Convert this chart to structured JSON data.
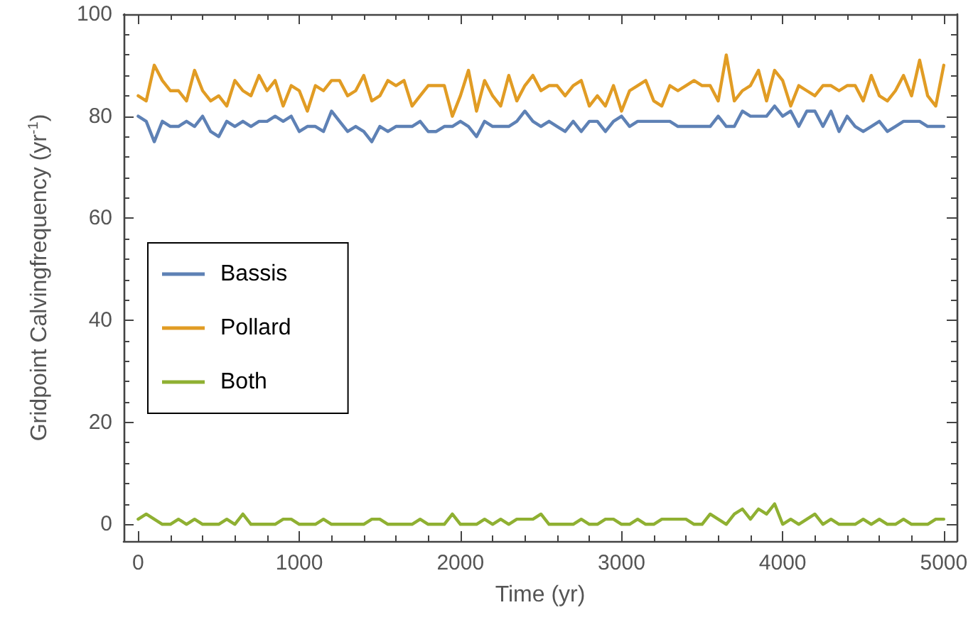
{
  "chart_data": {
    "type": "line",
    "xlabel": "Time (yr)",
    "ylabel": "Gridpoint Calvingfrequency (yr$^{-1}$)",
    "x": [
      0,
      50,
      100,
      150,
      200,
      250,
      300,
      350,
      400,
      450,
      500,
      550,
      600,
      650,
      700,
      750,
      800,
      850,
      900,
      950,
      1000,
      1050,
      1100,
      1150,
      1200,
      1250,
      1300,
      1350,
      1400,
      1450,
      1500,
      1550,
      1600,
      1650,
      1700,
      1750,
      1800,
      1850,
      1900,
      1950,
      2000,
      2050,
      2100,
      2150,
      2200,
      2250,
      2300,
      2350,
      2400,
      2450,
      2500,
      2550,
      2600,
      2650,
      2700,
      2750,
      2800,
      2850,
      2900,
      2950,
      3000,
      3050,
      3100,
      3150,
      3200,
      3250,
      3300,
      3350,
      3400,
      3450,
      3500,
      3550,
      3600,
      3650,
      3700,
      3750,
      3800,
      3850,
      3900,
      3950,
      4000,
      4050,
      4100,
      4150,
      4200,
      4250,
      4300,
      4350,
      4400,
      4450,
      4500,
      4550,
      4600,
      4650,
      4700,
      4750,
      4800,
      4850,
      4900,
      4950,
      5000
    ],
    "series": [
      {
        "name": "Bassis",
        "color": "#5e81b5",
        "values": [
          80,
          79,
          75,
          79,
          78,
          78,
          79,
          78,
          80,
          77,
          76,
          79,
          78,
          79,
          78,
          79,
          79,
          80,
          79,
          80,
          77,
          78,
          78,
          77,
          81,
          79,
          77,
          78,
          77,
          75,
          78,
          77,
          78,
          78,
          78,
          79,
          77,
          77,
          78,
          78,
          79,
          78,
          76,
          79,
          78,
          78,
          78,
          79,
          81,
          79,
          78,
          79,
          78,
          77,
          79,
          77,
          79,
          79,
          77,
          79,
          80,
          78,
          79,
          79,
          79,
          79,
          79,
          78,
          78,
          78,
          78,
          78,
          80,
          78,
          78,
          81,
          80,
          80,
          80,
          82,
          80,
          81,
          78,
          81,
          81,
          78,
          81,
          77,
          80,
          78,
          77,
          78,
          79,
          77,
          78,
          79,
          79,
          79,
          78,
          78,
          78
        ]
      },
      {
        "name": "Pollard",
        "color": "#e19c24",
        "values": [
          84,
          83,
          90,
          87,
          85,
          85,
          83,
          89,
          85,
          83,
          84,
          82,
          87,
          85,
          84,
          88,
          85,
          87,
          82,
          86,
          85,
          81,
          86,
          85,
          87,
          87,
          84,
          85,
          88,
          83,
          84,
          87,
          86,
          87,
          82,
          84,
          86,
          86,
          86,
          80,
          84,
          89,
          81,
          87,
          84,
          82,
          88,
          83,
          86,
          88,
          85,
          86,
          86,
          84,
          86,
          87,
          82,
          84,
          82,
          86,
          81,
          85,
          86,
          87,
          83,
          82,
          86,
          85,
          86,
          87,
          86,
          86,
          83,
          92,
          83,
          85,
          86,
          89,
          83,
          89,
          87,
          82,
          86,
          85,
          84,
          86,
          86,
          85,
          86,
          86,
          83,
          88,
          84,
          83,
          85,
          88,
          84,
          91,
          84,
          82,
          90
        ]
      },
      {
        "name": "Both",
        "color": "#8fb032",
        "values": [
          1,
          2,
          1,
          0,
          0,
          1,
          0,
          1,
          0,
          0,
          0,
          1,
          0,
          2,
          0,
          0,
          0,
          0,
          1,
          1,
          0,
          0,
          0,
          1,
          0,
          0,
          0,
          0,
          0,
          1,
          1,
          0,
          0,
          0,
          0,
          1,
          0,
          0,
          0,
          2,
          0,
          0,
          0,
          1,
          0,
          1,
          0,
          1,
          1,
          1,
          2,
          0,
          0,
          0,
          0,
          1,
          0,
          0,
          1,
          1,
          0,
          0,
          1,
          0,
          0,
          1,
          1,
          1,
          1,
          0,
          0,
          2,
          1,
          0,
          2,
          3,
          1,
          3,
          2,
          4,
          0,
          1,
          0,
          1,
          2,
          0,
          1,
          0,
          0,
          0,
          1,
          0,
          1,
          0,
          0,
          1,
          0,
          0,
          0,
          1,
          1
        ]
      }
    ],
    "xlim": [
      -90,
      5080
    ],
    "xticks": [
      0,
      1000,
      2000,
      3000,
      4000,
      5000
    ],
    "ylim": [
      -3.3,
      100
    ],
    "yticks": [
      0,
      20,
      40,
      60,
      80,
      100
    ],
    "grid": false,
    "legend": "left",
    "marker": "none",
    "line_style": "solid"
  }
}
